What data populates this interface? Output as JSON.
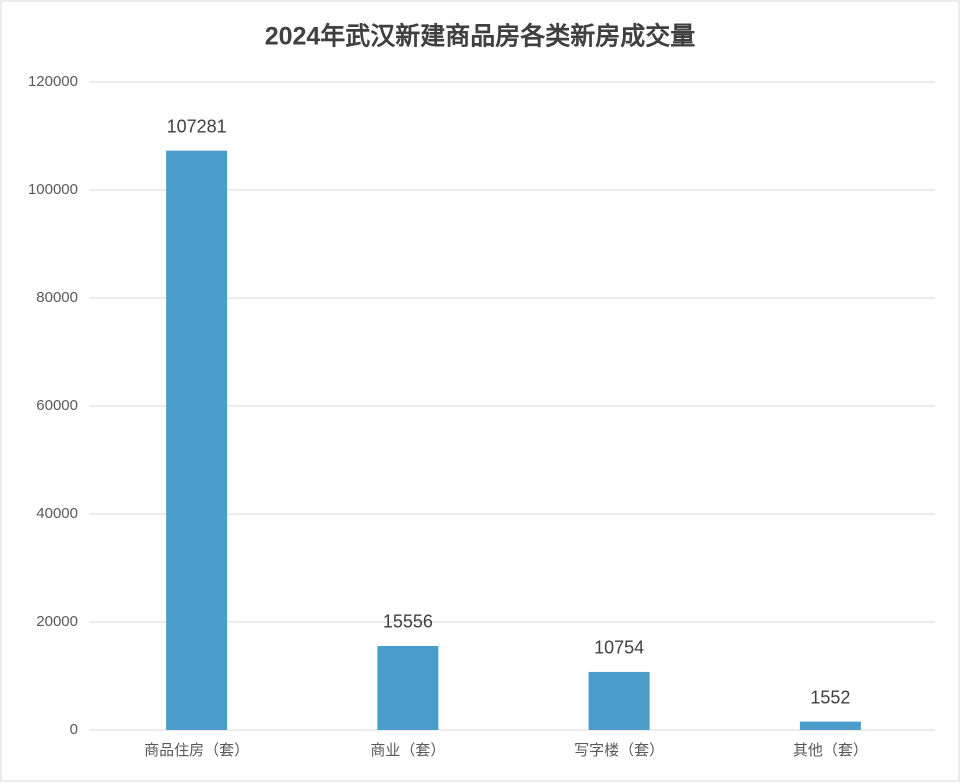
{
  "chart_data": {
    "type": "bar",
    "title": "2024年武汉新建商品房各类新房成交量",
    "categories": [
      "商品住房（套）",
      "商业（套）",
      "写字楼（套）",
      "其他（套）"
    ],
    "values": [
      107281,
      15556,
      10754,
      1552
    ],
    "color": "#4a9ccb",
    "ylim": [
      0,
      120000
    ],
    "yticks": [
      0,
      20000,
      40000,
      60000,
      80000,
      100000,
      120000
    ],
    "grid": true
  }
}
